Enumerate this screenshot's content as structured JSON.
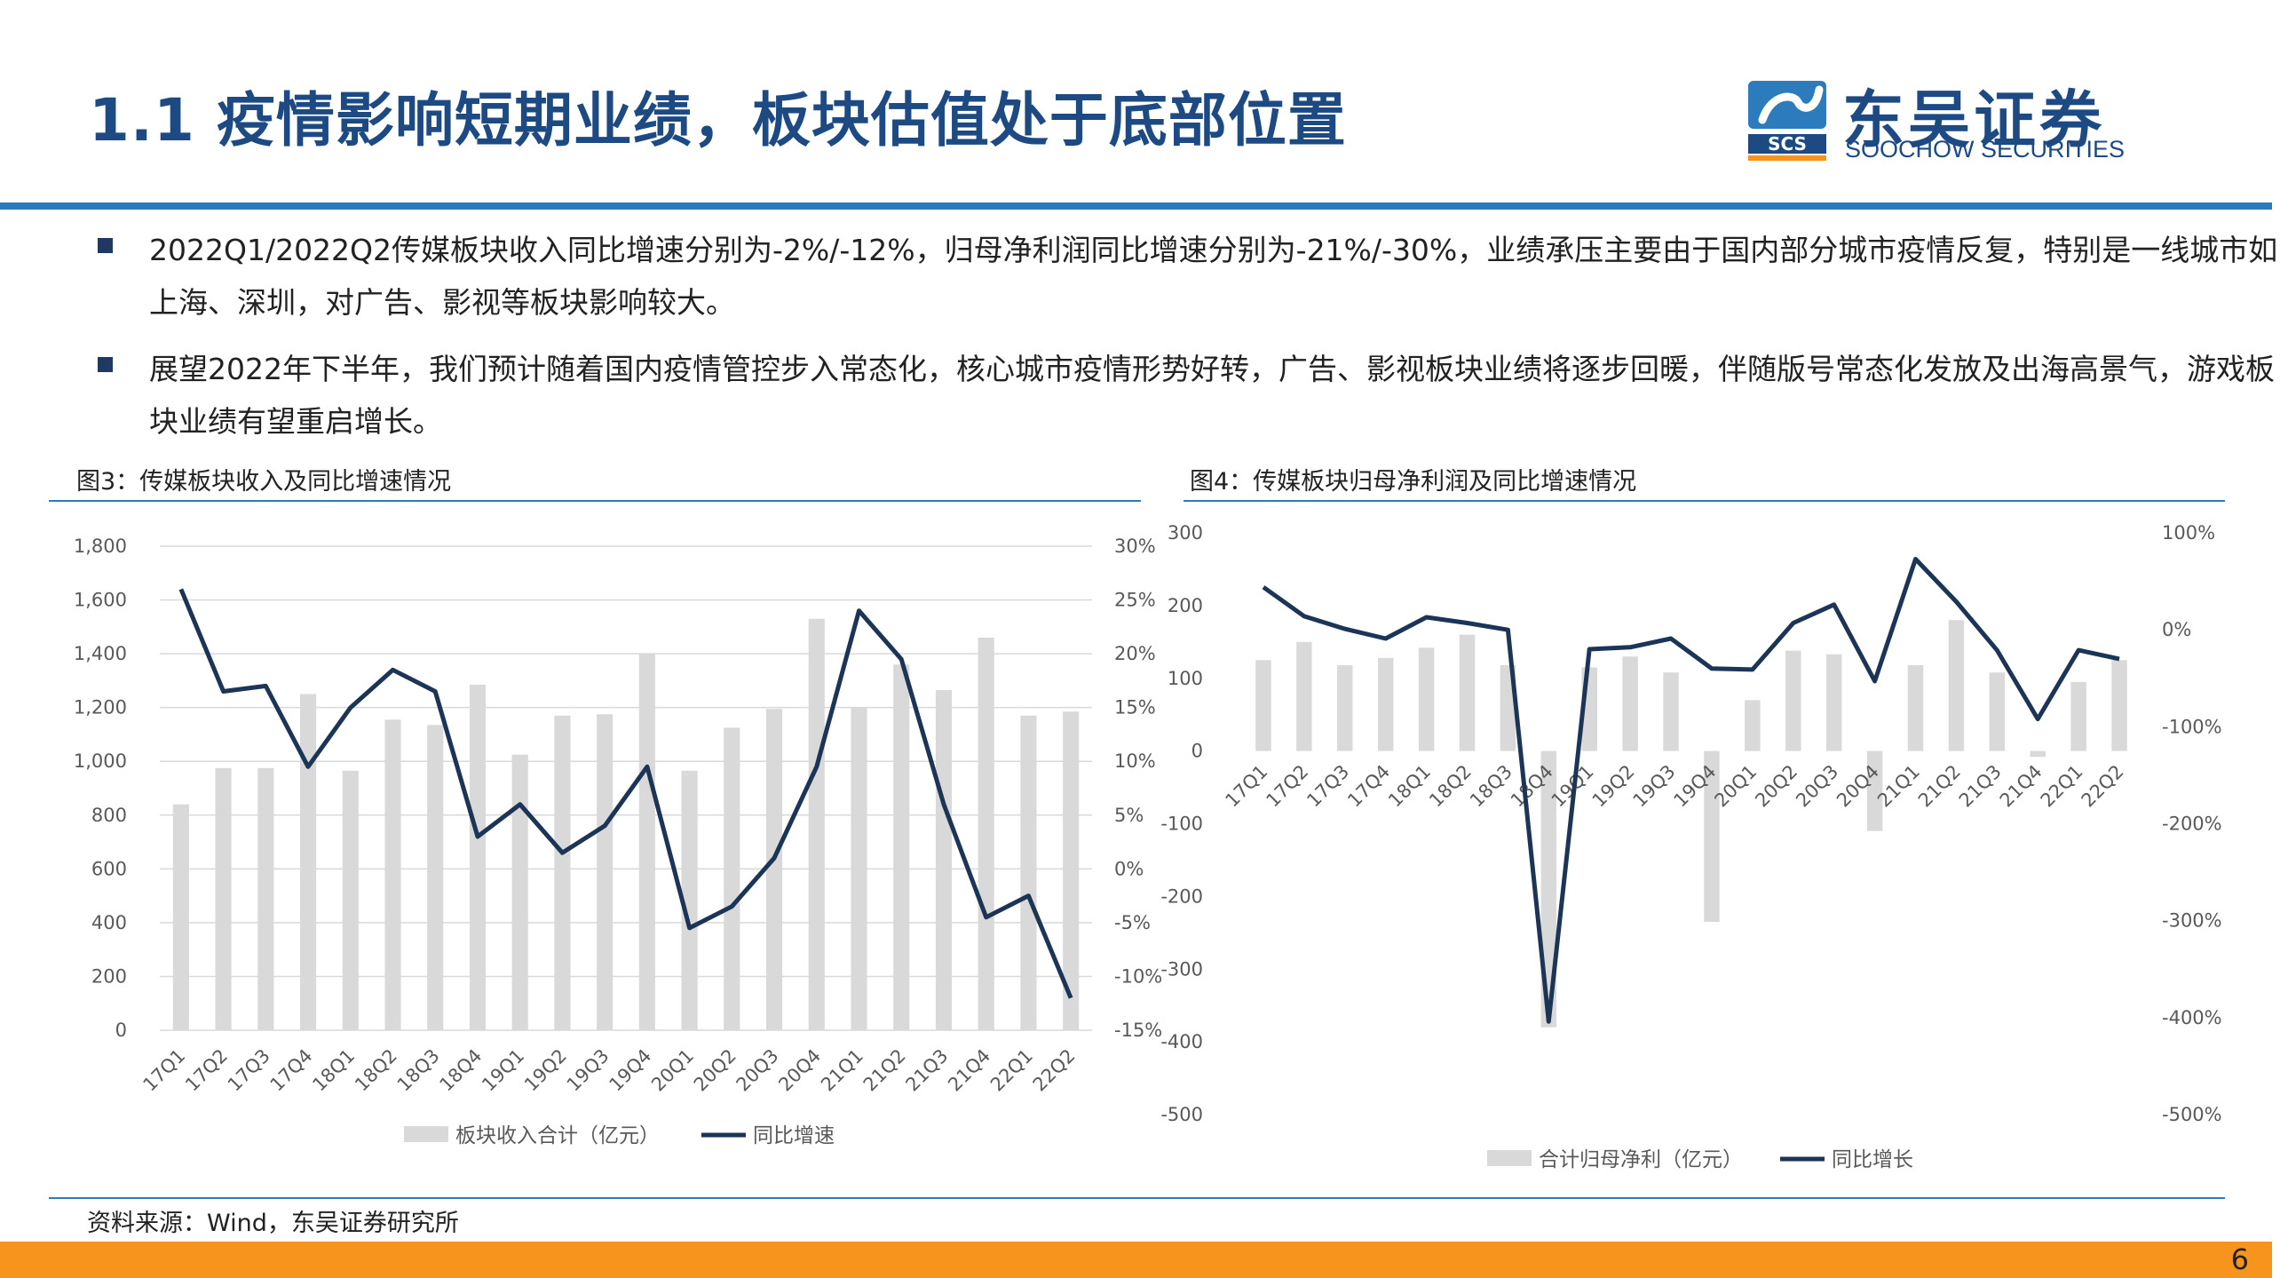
{
  "header": {
    "title": "1.1 疫情影响短期业绩，板块估值处于底部位置",
    "logo_cn": "东吴证券",
    "logo_en": "SOOCHOW SECURITIES",
    "logo_mark": "SCS"
  },
  "bullets": [
    {
      "text": "2022Q1/2022Q2传媒板块收入同比增速分别为-2%/-12%，归母净利润同比增速分别为-21%/-30%，业绩承压主要由于国内部分城市疫情反复，特别是一线城市如上海、深圳，对广告、影视等板块影响较大。"
    },
    {
      "text": "展望2022年下半年，我们预计随着国内疫情管控步入常态化，核心城市疫情形势好转，广告、影视板块业绩将逐步回暖，伴随版号常态化发放及出海高景气，游戏板块业绩有望重启增长。"
    }
  ],
  "colors": {
    "bar": "#d9d9d9",
    "line": "#1c3557",
    "title": "#1e4a84",
    "rule": "#2b7bbd",
    "footer": "#f7941d"
  },
  "chart_data": [
    {
      "type": "bar+line",
      "title": "图3：传媒板块收入及同比增速情况",
      "categories": [
        "17Q1",
        "17Q2",
        "17Q3",
        "17Q4",
        "18Q1",
        "18Q2",
        "18Q3",
        "18Q4",
        "19Q1",
        "19Q2",
        "19Q3",
        "19Q4",
        "20Q1",
        "20Q2",
        "20Q3",
        "20Q4",
        "21Q1",
        "21Q2",
        "21Q3",
        "21Q4",
        "22Q1",
        "22Q2"
      ],
      "series": [
        {
          "name": "板块收入合计（亿元）",
          "type": "bar",
          "axis": "left",
          "values": [
            840,
            975,
            975,
            1250,
            965,
            1155,
            1135,
            1285,
            1025,
            1170,
            1175,
            1400,
            965,
            1125,
            1195,
            1530,
            1200,
            1360,
            1265,
            1460,
            1170,
            1185
          ]
        },
        {
          "name": "同比增速",
          "type": "line",
          "axis": "right",
          "values": [
            26,
            16.5,
            17,
            9.5,
            15,
            18.5,
            16.5,
            3,
            6,
            1.5,
            4,
            9.5,
            -5.5,
            -3.5,
            1,
            9.5,
            24,
            19.5,
            6,
            -4.5,
            -2.5,
            -12
          ]
        }
      ],
      "y_left": {
        "min": 0,
        "max": 1800,
        "ticks": [
          "0",
          "200",
          "400",
          "600",
          "800",
          "1,000",
          "1,200",
          "1,400",
          "1,600",
          "1,800"
        ]
      },
      "y_right": {
        "min": -15,
        "max": 30,
        "ticks": [
          "-15%",
          "-10%",
          "-5%",
          "0%",
          "5%",
          "10%",
          "15%",
          "20%",
          "25%",
          "30%"
        ]
      },
      "grid": true,
      "legend": "bottom"
    },
    {
      "type": "bar+line",
      "title": "图4：传媒板块归母净利润及同比增速情况",
      "categories": [
        "17Q1",
        "17Q2",
        "17Q3",
        "17Q4",
        "18Q1",
        "18Q2",
        "18Q3",
        "18Q4",
        "19Q1",
        "19Q2",
        "19Q3",
        "19Q4",
        "20Q1",
        "20Q2",
        "20Q3",
        "20Q4",
        "21Q1",
        "21Q2",
        "21Q3",
        "21Q4",
        "22Q1",
        "22Q2"
      ],
      "series": [
        {
          "name": "合计归母净利（亿元）",
          "type": "bar",
          "axis": "left",
          "values": [
            125,
            150,
            118,
            128,
            142,
            160,
            118,
            -380,
            115,
            130,
            108,
            -235,
            70,
            138,
            133,
            -110,
            118,
            180,
            108,
            -8,
            95,
            125
          ]
        },
        {
          "name": "同比增长",
          "type": "line",
          "axis": "right",
          "values": [
            44,
            14,
            1,
            -9,
            13,
            7,
            0,
            -404,
            -20,
            -18,
            -9,
            -40,
            -41,
            7,
            26,
            -53,
            73,
            29,
            -21,
            -92,
            -21,
            -30
          ]
        }
      ],
      "y_left": {
        "min": -500,
        "max": 300,
        "ticks": [
          "-500",
          "-400",
          "-300",
          "-200",
          "-100",
          "0",
          "100",
          "200",
          "300"
        ]
      },
      "y_right": {
        "min": -500,
        "max": 100,
        "ticks": [
          "-500%",
          "-400%",
          "-300%",
          "-200%",
          "-100%",
          "0%",
          "100%"
        ]
      },
      "grid": true,
      "legend": "bottom"
    }
  ],
  "source": "资料来源：Wind，东吴证券研究所",
  "page_number": "6"
}
